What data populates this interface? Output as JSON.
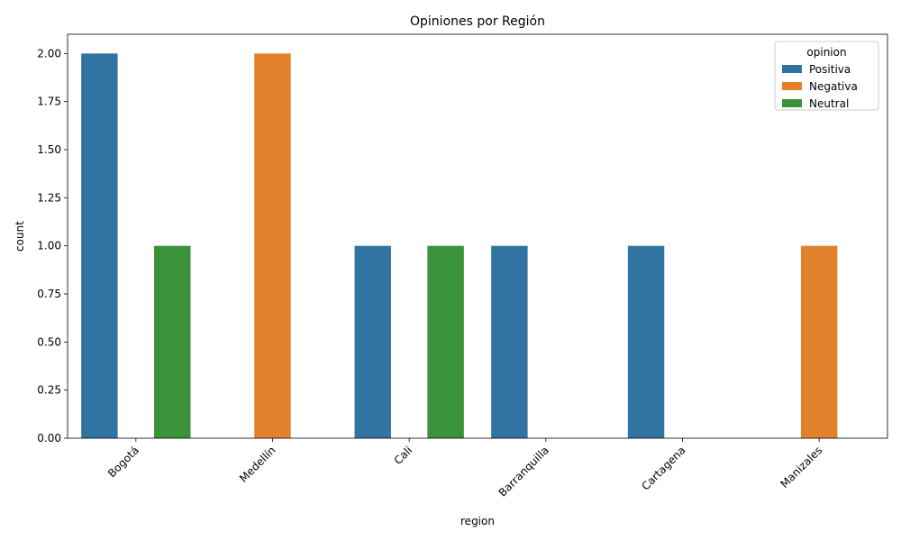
{
  "chart_data": {
    "type": "bar",
    "title": "Opiniones por Región",
    "xlabel": "region",
    "ylabel": "count",
    "categories": [
      "Bogotá",
      "Medellín",
      "Cali",
      "Barranquilla",
      "Cartagena",
      "Manizales"
    ],
    "series": [
      {
        "name": "Positiva",
        "color": "#3274a1",
        "values": [
          2,
          0,
          1,
          1,
          1,
          0
        ]
      },
      {
        "name": "Negativa",
        "color": "#e1812c",
        "values": [
          0,
          2,
          0,
          0,
          0,
          1
        ]
      },
      {
        "name": "Neutral",
        "color": "#3a923a",
        "values": [
          1,
          0,
          1,
          0,
          0,
          0
        ]
      }
    ],
    "ylim": [
      0,
      2.1
    ],
    "yticks": [
      "0.00",
      "0.25",
      "0.50",
      "0.75",
      "1.00",
      "1.25",
      "1.50",
      "1.75",
      "2.00"
    ],
    "xtick_rotation_deg": 45,
    "legend": {
      "title": "opinion",
      "placement": "top-right"
    },
    "grid": false
  }
}
